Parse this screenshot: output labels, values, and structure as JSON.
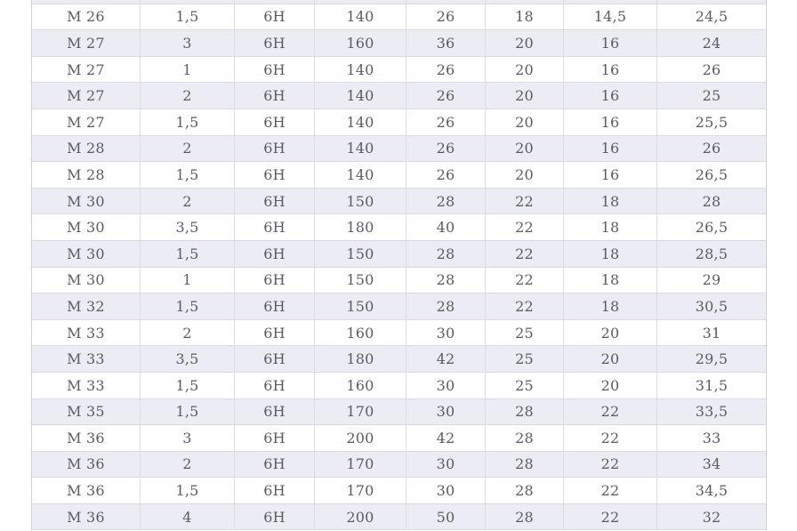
{
  "page": {
    "background": "#ffffff"
  },
  "colors": {
    "row_shaded": "#ebecf4",
    "row_plain": "#ffffff",
    "grid_border": "#d8d9e2",
    "outer_border": "#ced0da",
    "text": "#5b5c62"
  },
  "table": {
    "column_count": 8,
    "clipped_top_row": [
      "",
      "",
      "",
      "",
      "",
      "",
      "",
      ""
    ],
    "rows": [
      [
        "M 26",
        "1,5",
        "6H",
        "140",
        "26",
        "18",
        "14,5",
        "24,5"
      ],
      [
        "M 27",
        "3",
        "6H",
        "160",
        "36",
        "20",
        "16",
        "24"
      ],
      [
        "M 27",
        "1",
        "6H",
        "140",
        "26",
        "20",
        "16",
        "26"
      ],
      [
        "M 27",
        "2",
        "6H",
        "140",
        "26",
        "20",
        "16",
        "25"
      ],
      [
        "M 27",
        "1,5",
        "6H",
        "140",
        "26",
        "20",
        "16",
        "25,5"
      ],
      [
        "M 28",
        "2",
        "6H",
        "140",
        "26",
        "20",
        "16",
        "26"
      ],
      [
        "M 28",
        "1,5",
        "6H",
        "140",
        "26",
        "20",
        "16",
        "26,5"
      ],
      [
        "M 30",
        "2",
        "6H",
        "150",
        "28",
        "22",
        "18",
        "28"
      ],
      [
        "M 30",
        "3,5",
        "6H",
        "180",
        "40",
        "22",
        "18",
        "26,5"
      ],
      [
        "M 30",
        "1,5",
        "6H",
        "150",
        "28",
        "22",
        "18",
        "28,5"
      ],
      [
        "M 30",
        "1",
        "6H",
        "150",
        "28",
        "22",
        "18",
        "29"
      ],
      [
        "M 32",
        "1,5",
        "6H",
        "150",
        "28",
        "22",
        "18",
        "30,5"
      ],
      [
        "M 33",
        "2",
        "6H",
        "160",
        "30",
        "25",
        "20",
        "31"
      ],
      [
        "M 33",
        "3,5",
        "6H",
        "180",
        "42",
        "25",
        "20",
        "29,5"
      ],
      [
        "M 33",
        "1,5",
        "6H",
        "160",
        "30",
        "25",
        "20",
        "31,5"
      ],
      [
        "M 35",
        "1,5",
        "6H",
        "170",
        "30",
        "28",
        "22",
        "33,5"
      ],
      [
        "M 36",
        "3",
        "6H",
        "200",
        "42",
        "28",
        "22",
        "33"
      ],
      [
        "M 36",
        "2",
        "6H",
        "170",
        "30",
        "28",
        "22",
        "34"
      ],
      [
        "M 36",
        "1,5",
        "6H",
        "170",
        "30",
        "28",
        "22",
        "34,5"
      ],
      [
        "M 36",
        "4",
        "6H",
        "200",
        "50",
        "28",
        "22",
        "32"
      ]
    ]
  }
}
